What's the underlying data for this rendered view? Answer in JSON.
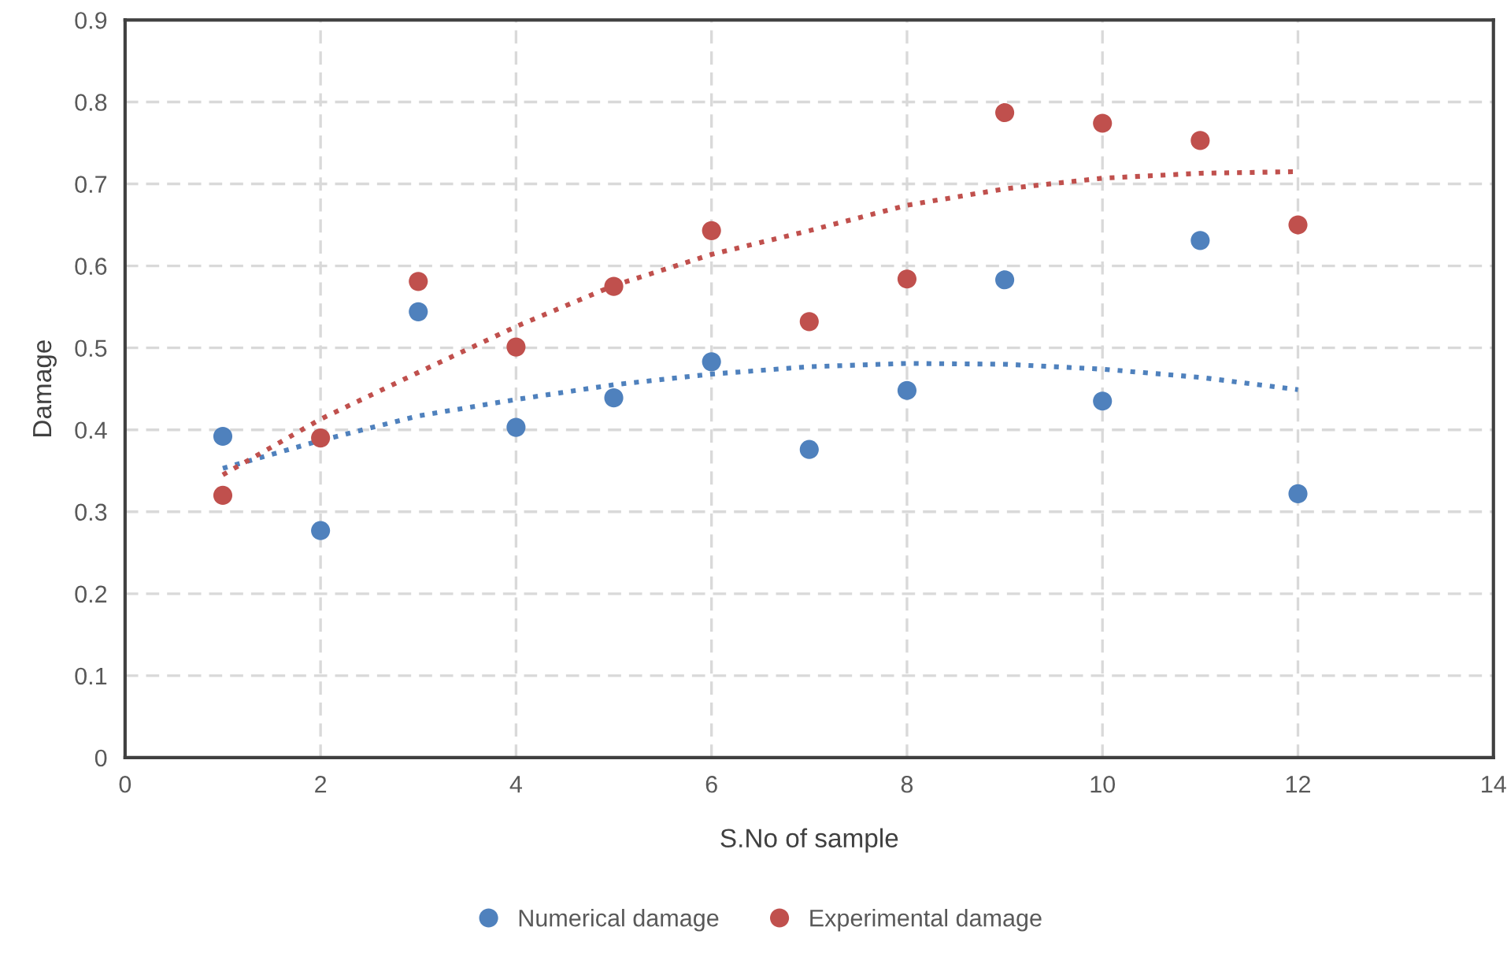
{
  "chart_data": {
    "type": "scatter",
    "xlabel": "S.No of sample",
    "ylabel": "Damage",
    "x": [
      1,
      2,
      3,
      4,
      5,
      6,
      7,
      8,
      9,
      10,
      11,
      12
    ],
    "series": [
      {
        "name": "Numerical damage",
        "color": "#4f81bd",
        "values": [
          0.392,
          0.277,
          0.544,
          0.403,
          0.439,
          0.483,
          0.376,
          0.448,
          0.583,
          0.435,
          0.631,
          0.322
        ]
      },
      {
        "name": "Experimental damage",
        "color": "#c0504d",
        "values": [
          0.32,
          0.39,
          0.581,
          0.501,
          0.575,
          0.643,
          0.532,
          0.584,
          0.787,
          0.774,
          0.753,
          0.65
        ]
      },
      {
        "type": "line",
        "color": "#4f81bd",
        "line_style": "dotted",
        "marker": "none",
        "values": [
          0.353,
          0.387,
          0.417,
          0.437,
          0.455,
          0.468,
          0.477,
          0.481,
          0.48,
          0.474,
          0.464,
          0.449
        ]
      },
      {
        "type": "line",
        "color": "#c0504d",
        "line_style": "dotted",
        "marker": "none",
        "values": [
          0.345,
          0.413,
          0.47,
          0.526,
          0.576,
          0.614,
          0.643,
          0.674,
          0.694,
          0.707,
          0.713,
          0.715
        ]
      }
    ],
    "marker": "circle",
    "xlim": [
      0,
      14
    ],
    "xticks": [
      0,
      2,
      4,
      6,
      8,
      10,
      12,
      14
    ],
    "ylim": [
      0,
      0.9
    ],
    "yticks": [
      0,
      0.1,
      0.2,
      0.3,
      0.4,
      0.5,
      0.6,
      0.7,
      0.8,
      0.9
    ],
    "grid": true,
    "legend": "bottom"
  }
}
